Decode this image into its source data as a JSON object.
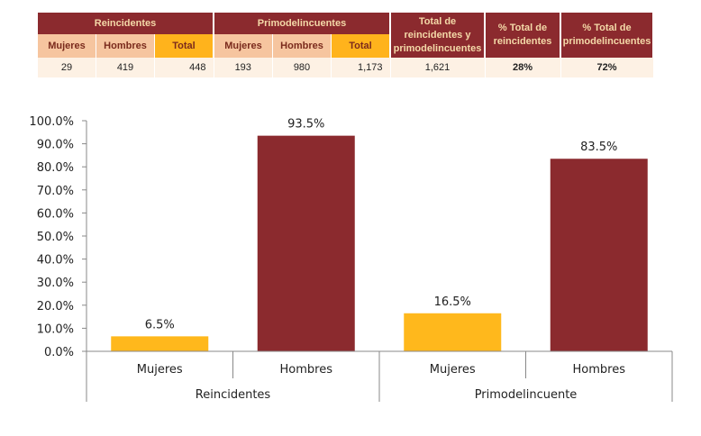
{
  "table": {
    "groups": [
      "Reincidentes",
      "Primodelincuentes"
    ],
    "total_header": "Total de reincidentes y primodelincuentes",
    "pct_reincidentes_header": "% Total de reincidentes",
    "pct_primo_header": "% Total de primodelincuentes",
    "subheaders": [
      "Mujeres",
      "Hombres",
      "Total"
    ],
    "reincidentes": {
      "mujeres": "29",
      "hombres": "419",
      "total": "448"
    },
    "primodelincuentes": {
      "mujeres": "193",
      "hombres": "980",
      "total": "1,173"
    },
    "total": "1,621",
    "pct_reincidentes": "28%",
    "pct_primodelincuentes": "72%"
  },
  "colors": {
    "mujeres": "#ffb81c",
    "hombres": "#8b2a2e"
  },
  "chart_data": {
    "type": "bar",
    "title": "",
    "xlabel": "",
    "ylabel": "",
    "ylim": [
      0,
      100
    ],
    "yticks": [
      "0.0%",
      "10.0%",
      "20.0%",
      "30.0%",
      "40.0%",
      "50.0%",
      "60.0%",
      "70.0%",
      "80.0%",
      "90.0%",
      "100.0%"
    ],
    "groups": [
      "Reincidentes",
      "Primodelincuente"
    ],
    "categories": [
      "Mujeres",
      "Hombres",
      "Mujeres",
      "Hombres"
    ],
    "values": [
      6.5,
      93.5,
      16.5,
      83.5
    ],
    "labels": [
      "6.5%",
      "93.5%",
      "16.5%",
      "83.5%"
    ],
    "series_keys": [
      "mujeres",
      "hombres",
      "mujeres",
      "hombres"
    ]
  }
}
